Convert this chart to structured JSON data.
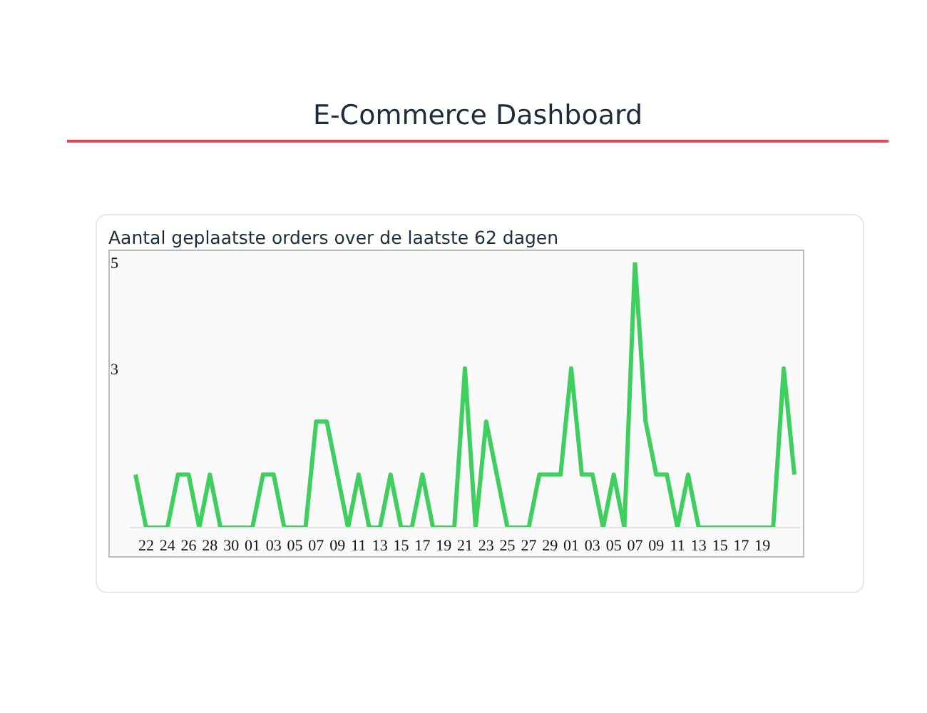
{
  "chart_data": {
    "type": "line",
    "title": "E-Commerce Dashboard",
    "subtitle": "Aantal geplaatste orders over de laatste 62 dagen",
    "categories": [
      null,
      "22",
      null,
      "24",
      null,
      "26",
      null,
      "28",
      null,
      "30",
      null,
      "01",
      null,
      "03",
      null,
      "05",
      null,
      "07",
      null,
      "09",
      null,
      "11",
      null,
      "13",
      null,
      "15",
      null,
      "17",
      null,
      "19",
      null,
      "21",
      null,
      "23",
      null,
      "25",
      null,
      "27",
      null,
      "29",
      null,
      "01",
      null,
      "03",
      null,
      "05",
      null,
      "07",
      null,
      "09",
      null,
      "11",
      null,
      "13",
      null,
      "15",
      null,
      "17",
      null,
      "19",
      null,
      null,
      null
    ],
    "values": [
      1,
      0,
      0,
      0,
      1,
      1,
      0,
      1,
      0,
      0,
      0,
      0,
      1,
      1,
      0,
      0,
      0,
      2,
      2,
      1,
      0,
      1,
      0,
      0,
      1,
      0,
      0,
      1,
      0,
      0,
      0,
      3,
      0,
      2,
      1,
      0,
      0,
      0,
      1,
      1,
      1,
      3,
      1,
      1,
      0,
      1,
      0,
      5,
      2,
      1,
      1,
      0,
      1,
      0,
      0,
      0,
      0,
      0,
      0,
      0,
      0,
      3,
      1
    ],
    "color": "#3ecf5e",
    "ylim": [
      0,
      5
    ],
    "yticks": [
      3,
      5
    ],
    "grid": false,
    "legend": false,
    "marker": "none",
    "line_style": "solid"
  }
}
